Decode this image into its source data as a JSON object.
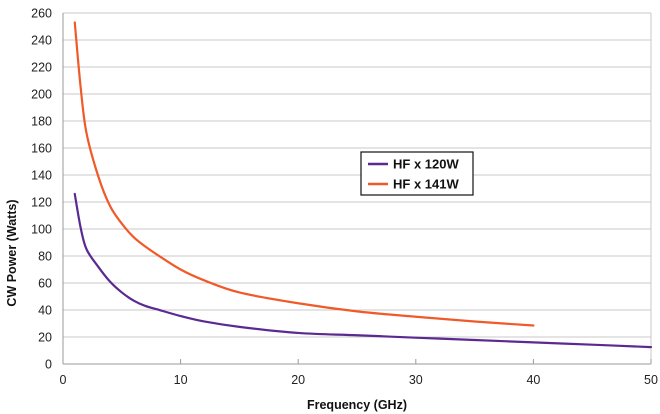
{
  "chart_data": {
    "type": "line",
    "title": "",
    "xlabel": "Frequency (GHz)",
    "ylabel": "CW Power (Watts)",
    "xlim": [
      0,
      50
    ],
    "ylim": [
      0,
      260
    ],
    "x_ticks": [
      0,
      10,
      20,
      30,
      40,
      50
    ],
    "y_ticks": [
      0,
      20,
      40,
      60,
      80,
      100,
      120,
      140,
      160,
      180,
      200,
      220,
      240,
      260
    ],
    "grid": "horizontal",
    "legend_position": "center-right",
    "series": [
      {
        "name": "HF x 120W",
        "color": "#5b2a91",
        "points": [
          [
            1,
            126
          ],
          [
            1.5,
            101
          ],
          [
            2,
            85
          ],
          [
            3,
            72
          ],
          [
            4,
            61
          ],
          [
            5,
            53
          ],
          [
            6,
            47
          ],
          [
            7,
            43
          ],
          [
            8,
            40.5
          ],
          [
            10,
            35.5
          ],
          [
            12,
            31.5
          ],
          [
            15,
            27.5
          ],
          [
            20,
            23
          ],
          [
            25,
            21.3
          ],
          [
            30,
            19.5
          ],
          [
            35,
            17.8
          ],
          [
            40,
            16
          ],
          [
            45,
            14.3
          ],
          [
            50,
            12.5
          ]
        ]
      },
      {
        "name": "HF x 141W",
        "color": "#f05a28",
        "points": [
          [
            1,
            253
          ],
          [
            1.5,
            205
          ],
          [
            2,
            171
          ],
          [
            3,
            139
          ],
          [
            4,
            117
          ],
          [
            5,
            104
          ],
          [
            6,
            94
          ],
          [
            7,
            87
          ],
          [
            8,
            81
          ],
          [
            10,
            70
          ],
          [
            12,
            62
          ],
          [
            15,
            53
          ],
          [
            20,
            45
          ],
          [
            25,
            39
          ],
          [
            30,
            35
          ],
          [
            35,
            31.5
          ],
          [
            40,
            28.5
          ]
        ]
      }
    ]
  }
}
